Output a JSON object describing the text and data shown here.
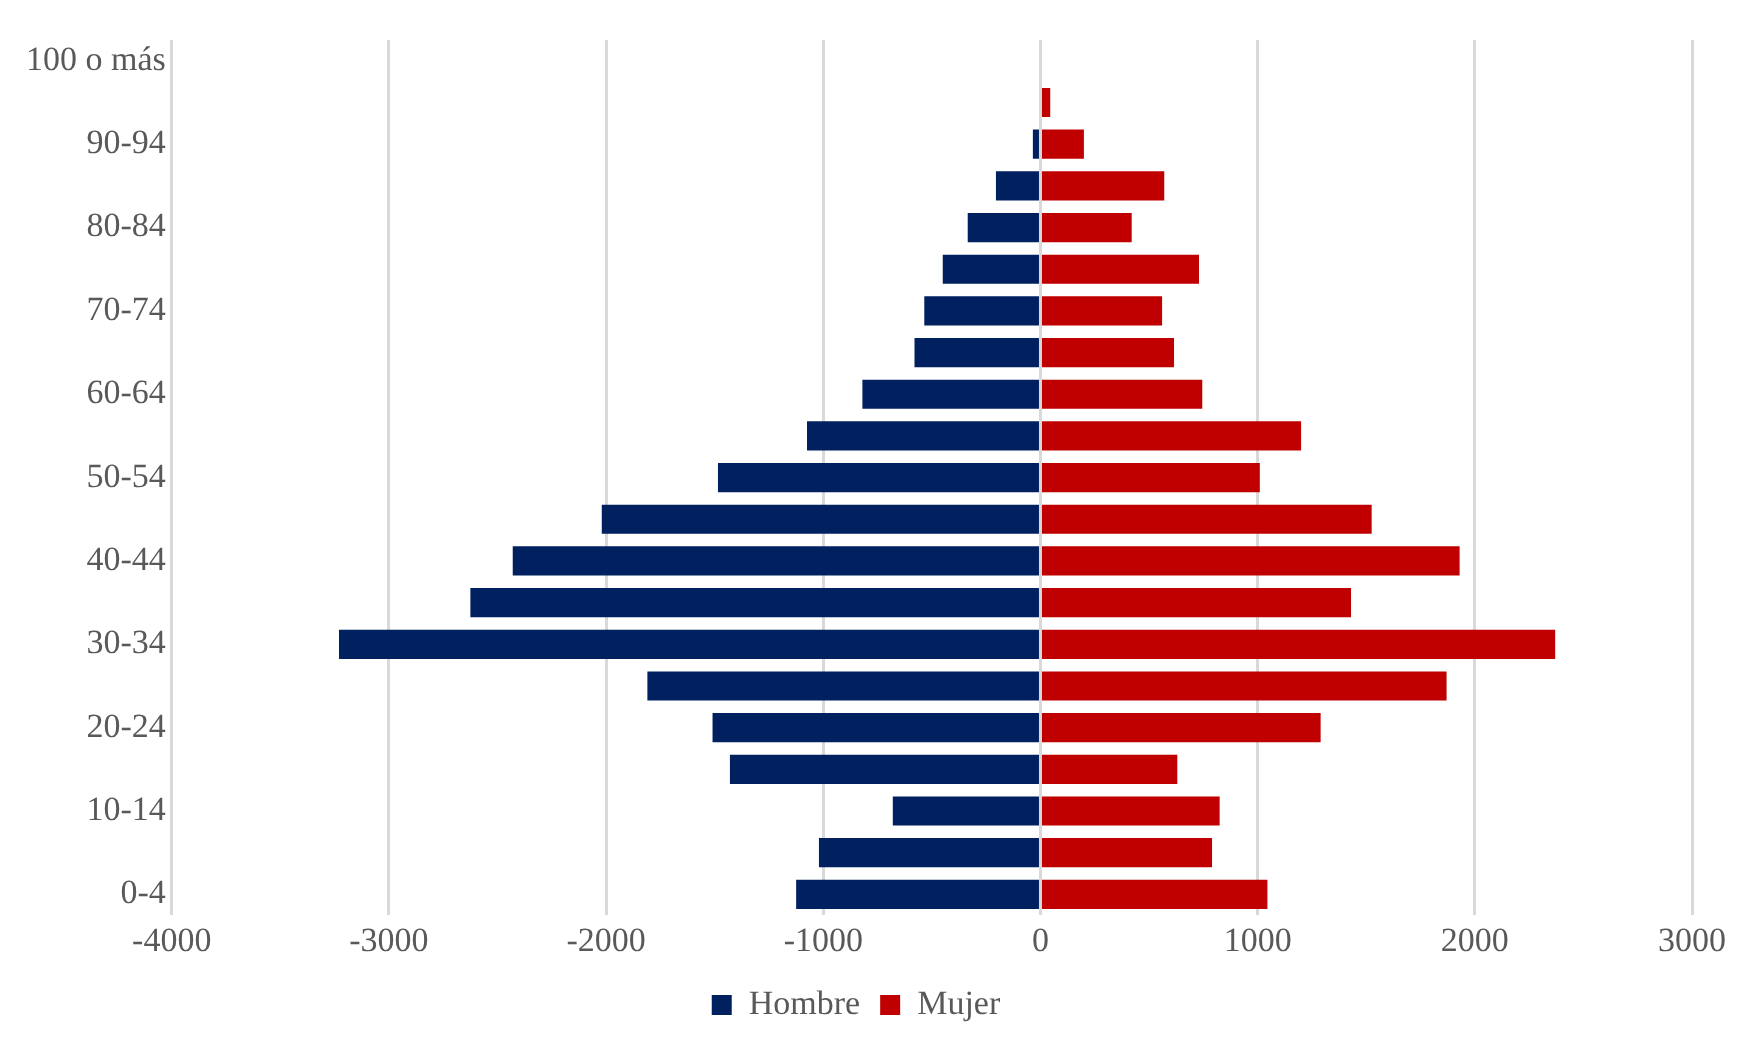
{
  "chart_data": {
    "type": "bar",
    "orientation": "horizontal",
    "stacked": true,
    "categories": [
      "100 o más",
      null,
      "90-94",
      null,
      "80-84",
      null,
      "70-74",
      null,
      "60-64",
      null,
      "50-54",
      null,
      "40-44",
      null,
      "30-34",
      null,
      "20-24",
      null,
      "10-14",
      null,
      "0-4"
    ],
    "series": [
      {
        "name": "Hombre",
        "color": "#002060",
        "values": [
          0,
          0,
          -35,
          -205,
          -335,
          -450,
          -535,
          -580,
          -820,
          -1075,
          -1485,
          -2020,
          -2430,
          -2625,
          -3230,
          -1810,
          -1510,
          -1430,
          -680,
          -1020,
          -1125
        ]
      },
      {
        "name": "Mujer",
        "color": "#c00000",
        "values": [
          0,
          45,
          200,
          570,
          420,
          730,
          560,
          615,
          745,
          1200,
          1010,
          1525,
          1930,
          1430,
          2370,
          1870,
          1290,
          630,
          825,
          790,
          1045
        ]
      }
    ],
    "xlim": [
      -4000,
      3000
    ],
    "xticks": [
      -4000,
      -3000,
      -2000,
      -1000,
      0,
      1000,
      2000,
      3000
    ],
    "grid": "x",
    "legend": "bottom"
  }
}
